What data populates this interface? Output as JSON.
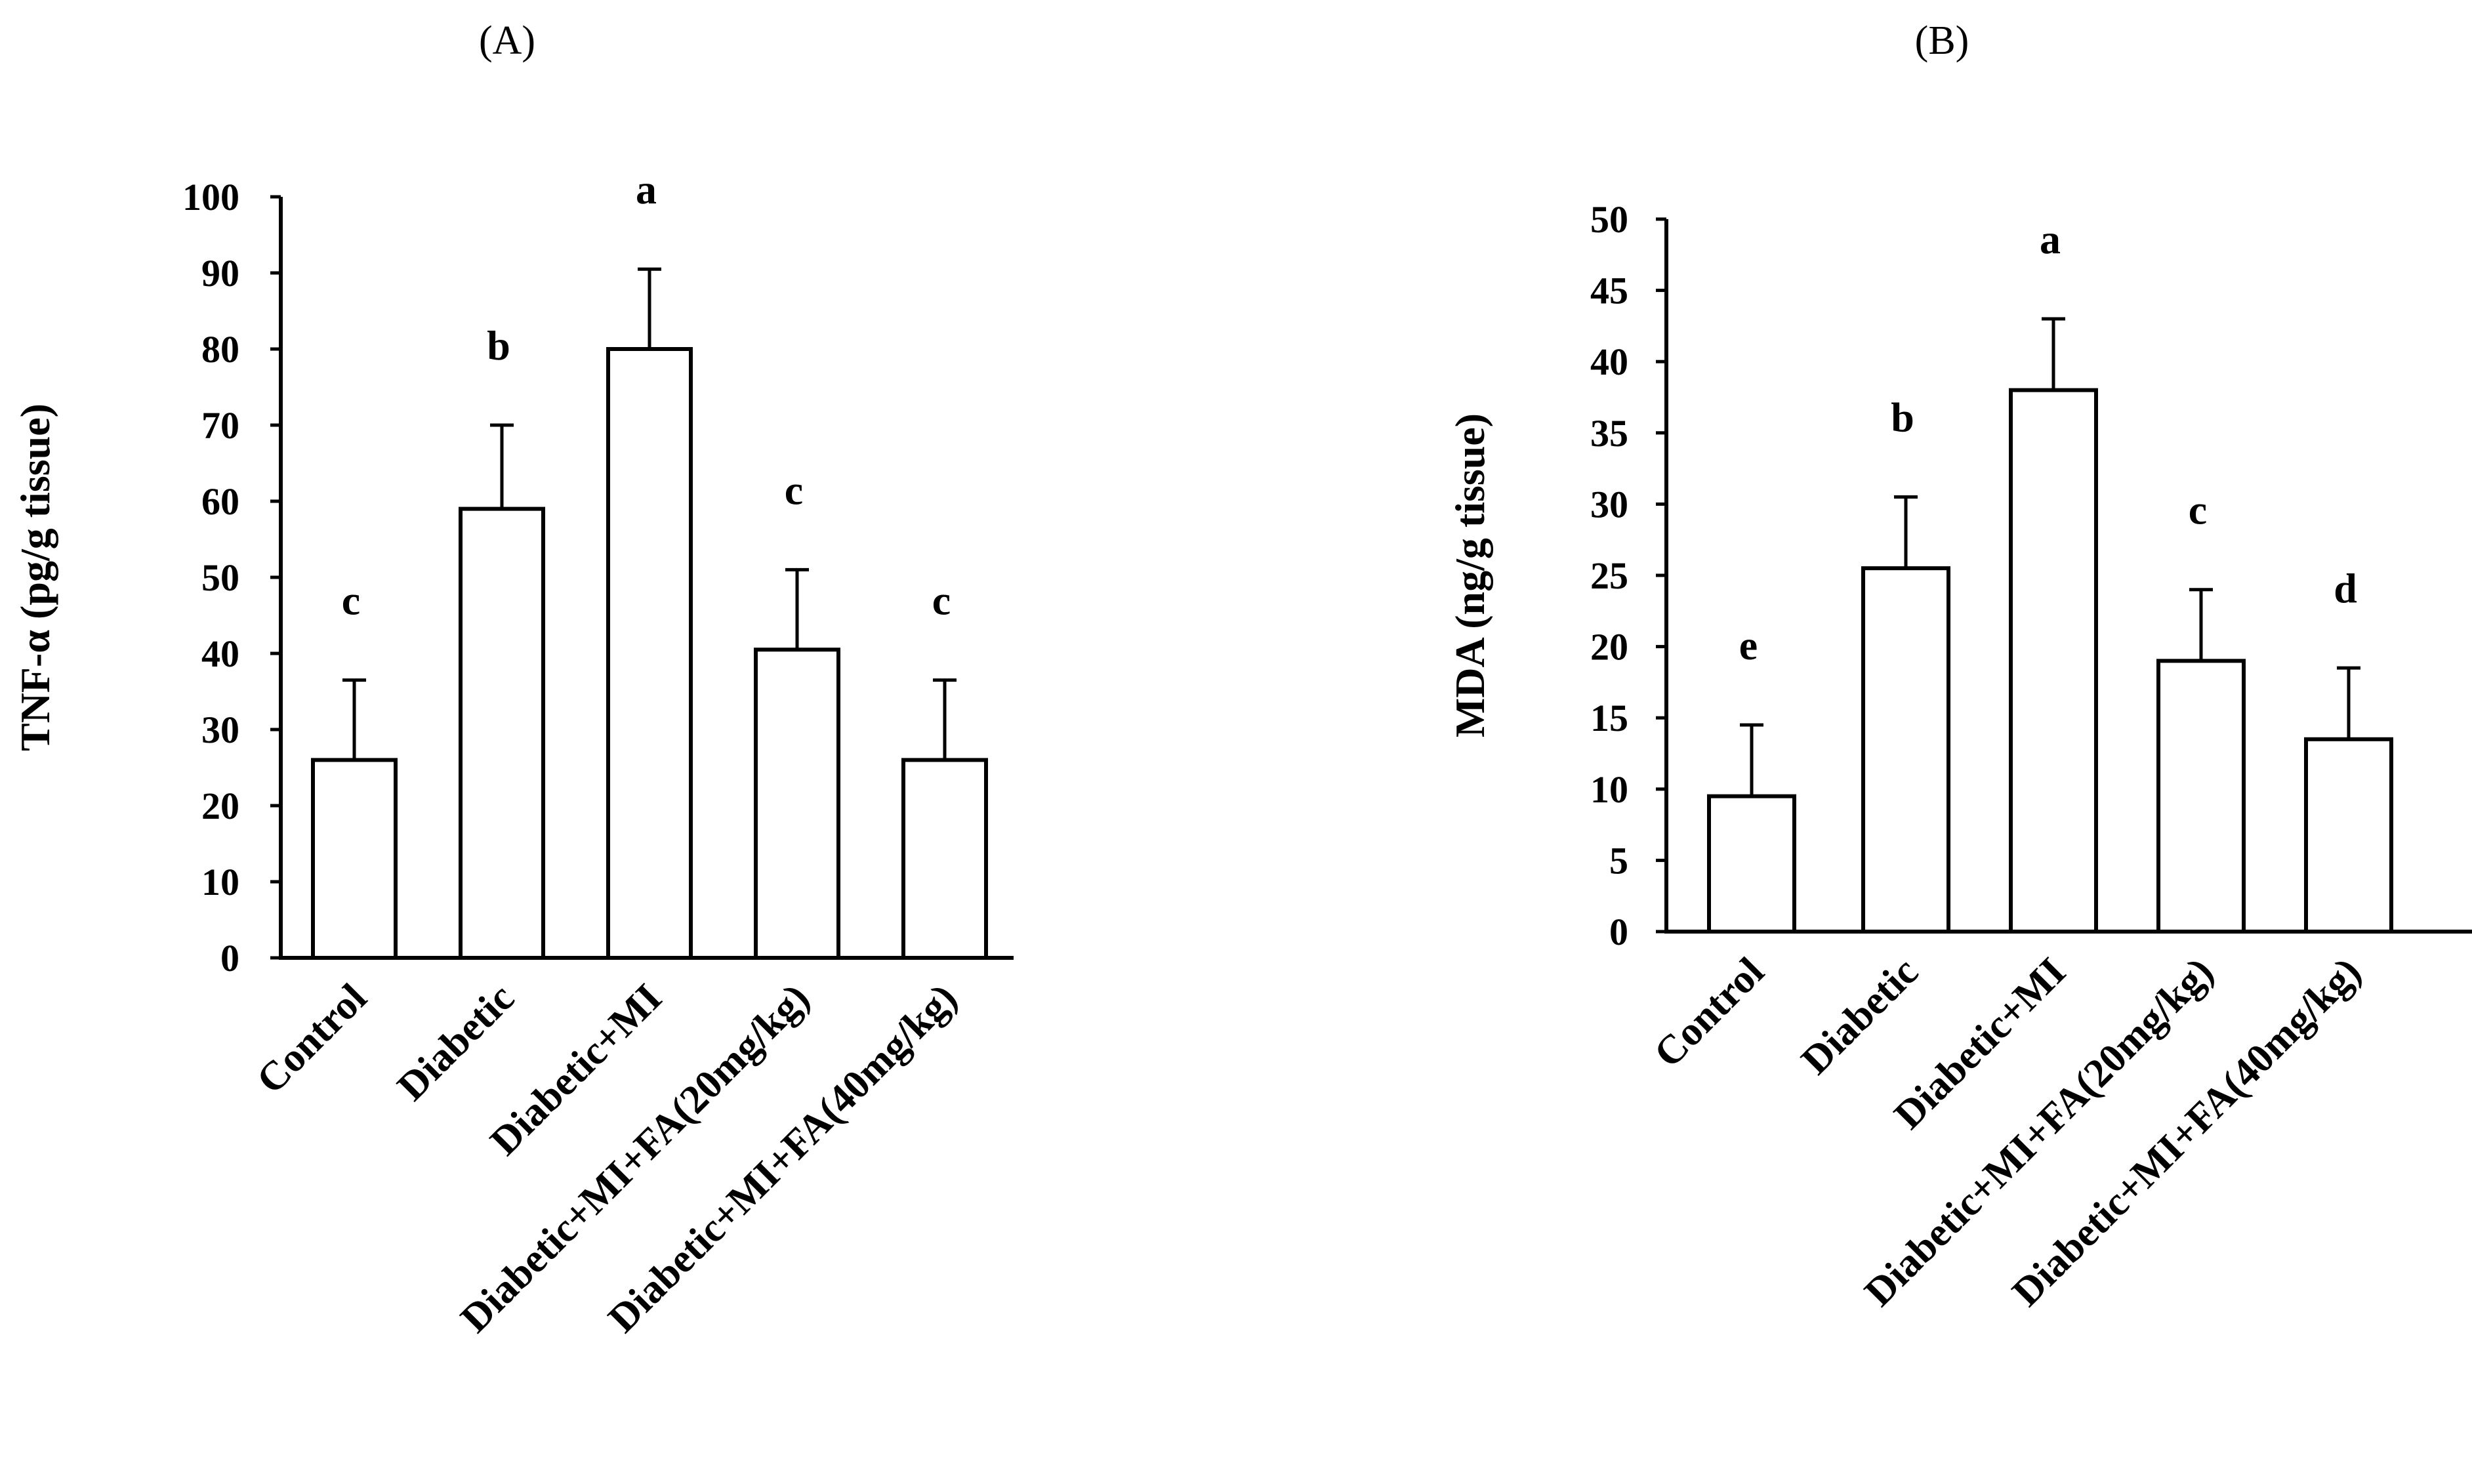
{
  "chart_data": [
    {
      "type": "bar",
      "panel": "(A)",
      "title": "",
      "xlabel": "",
      "ylabel": "TNF-α (pg/g tissue)",
      "ylim": [
        0,
        100
      ],
      "yticks": [
        0,
        10,
        20,
        30,
        40,
        50,
        60,
        70,
        80,
        90,
        100
      ],
      "grid": false,
      "categories": [
        "Control",
        "Diabetic",
        "Diabetic+MI",
        "Diabetic+MI+FA(20mg/kg)",
        "Diabetic+MI+FA(40mg/kg)"
      ],
      "values": [
        26,
        59,
        80,
        40.5,
        26
      ],
      "errors": [
        10.5,
        11,
        10.5,
        10.5,
        10.5
      ],
      "significance": [
        "c",
        "b",
        "a",
        "c",
        "c"
      ],
      "colors": {
        "bar_fill": "#ffffff",
        "stroke": "#000000"
      }
    },
    {
      "type": "bar",
      "panel": "(B)",
      "title": "",
      "xlabel": "",
      "ylabel": "MDA (ng/g tissue)",
      "ylim": [
        0,
        50
      ],
      "yticks": [
        0,
        5,
        10,
        15,
        20,
        25,
        30,
        35,
        40,
        45,
        50
      ],
      "grid": false,
      "categories": [
        "Control",
        "Diabetic",
        "Diabetic+MI",
        "Diabetic+MI+FA(20mg/kg)",
        "Diabetic+MI+FA(40mg/kg)"
      ],
      "values": [
        9.5,
        25.5,
        38,
        19,
        13.5
      ],
      "errors": [
        5,
        5,
        5,
        5,
        5
      ],
      "significance": [
        "e",
        "b",
        "a",
        "c",
        "d"
      ],
      "colors": {
        "bar_fill": "#ffffff",
        "stroke": "#000000"
      }
    }
  ]
}
